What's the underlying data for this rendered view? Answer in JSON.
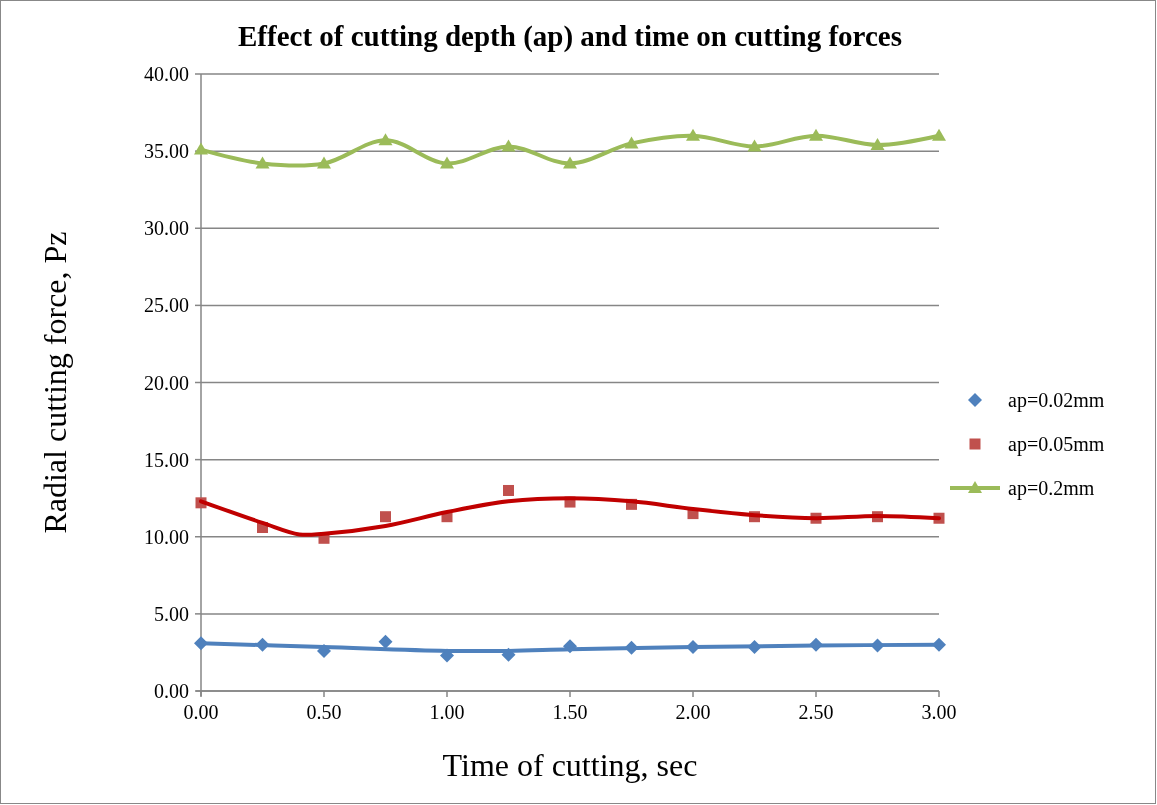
{
  "chart_data": {
    "type": "scatter",
    "title": "Effect of cutting depth (ap) and time on cutting forces",
    "xlabel": "Time of cutting, sec",
    "ylabel": "Radial cutting force, Pz",
    "xlim": [
      0,
      3
    ],
    "xticks": [
      {
        "value": 0,
        "label": "0.00"
      },
      {
        "value": 0.5,
        "label": "0.50"
      },
      {
        "value": 1,
        "label": "1.00"
      },
      {
        "value": 1.5,
        "label": "1.50"
      },
      {
        "value": 2,
        "label": "2.00"
      },
      {
        "value": 2.5,
        "label": "2.50"
      },
      {
        "value": 3,
        "label": "3.00"
      }
    ],
    "ylim": [
      0,
      40
    ],
    "yticks": [
      {
        "value": 0,
        "label": "0.00"
      },
      {
        "value": 5,
        "label": "5.00"
      },
      {
        "value": 10,
        "label": "10.00"
      },
      {
        "value": 15,
        "label": "15.00"
      },
      {
        "value": 20,
        "label": "20.00"
      },
      {
        "value": 25,
        "label": "25.00"
      },
      {
        "value": 30,
        "label": "30.00"
      },
      {
        "value": 35,
        "label": "35.00"
      },
      {
        "value": 40,
        "label": "40.00"
      }
    ],
    "grid": "y",
    "legend": "right",
    "x": [
      0,
      0.25,
      0.5,
      0.75,
      1,
      1.25,
      1.5,
      1.75,
      2,
      2.25,
      2.5,
      2.75,
      3
    ],
    "series": [
      {
        "name": "ap=0.02mm",
        "type": "scatter",
        "marker": "diamond",
        "color": "#4f81bd",
        "values": [
          3.1,
          3.0,
          2.6,
          3.2,
          2.3,
          2.35,
          2.9,
          2.8,
          2.85,
          2.85,
          3.0,
          2.95,
          3.0
        ]
      },
      {
        "name": "ap=0.05mm",
        "type": "scatter",
        "marker": "square",
        "color": "#c0504d",
        "values": [
          12.2,
          10.6,
          9.9,
          11.3,
          11.3,
          13.0,
          12.25,
          12.1,
          11.5,
          11.3,
          11.2,
          11.3,
          11.2
        ]
      },
      {
        "name": "ap=0.2mm",
        "type": "line",
        "marker": "triangle",
        "color": "#9bbb59",
        "values": [
          35.1,
          34.2,
          34.2,
          35.7,
          34.2,
          35.3,
          34.2,
          35.5,
          36.0,
          35.3,
          36.0,
          35.4,
          36.0
        ]
      },
      {
        "type": "line",
        "marker": "none",
        "color": "#4f81bd",
        "x": [
          0,
          0.5,
          1,
          1.25,
          1.5,
          2,
          2.5,
          3
        ],
        "values": [
          3.1,
          2.85,
          2.6,
          2.6,
          2.7,
          2.85,
          2.95,
          3.0
        ]
      },
      {
        "type": "line",
        "marker": "none",
        "color": "#c00000",
        "x": [
          0,
          0.25,
          0.4,
          0.5,
          0.75,
          1,
          1.25,
          1.5,
          1.75,
          2,
          2.25,
          2.5,
          2.75,
          3
        ],
        "values": [
          12.3,
          10.9,
          10.15,
          10.2,
          10.7,
          11.6,
          12.3,
          12.5,
          12.3,
          11.8,
          11.4,
          11.2,
          11.35,
          11.2
        ]
      }
    ]
  }
}
